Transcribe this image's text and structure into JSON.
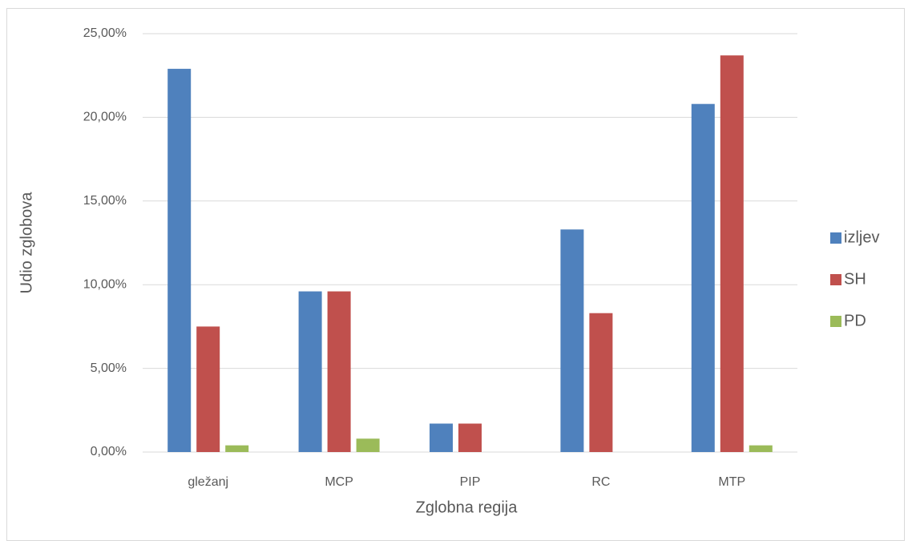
{
  "chart_data": {
    "type": "bar",
    "x_label": "Zglobna regija",
    "y_label": "Udio zglobova",
    "categories": [
      "gležanj",
      "MCP",
      "PIP",
      "RC",
      "MTP"
    ],
    "series": [
      {
        "name": "izljev",
        "color": "#4f81bd",
        "values": [
          22.9,
          9.6,
          1.7,
          13.3,
          20.8
        ]
      },
      {
        "name": "SH",
        "color": "#c0504d",
        "values": [
          7.5,
          9.6,
          1.7,
          8.3,
          23.7
        ]
      },
      {
        "name": "PD",
        "color": "#9bbb59",
        "values": [
          0.4,
          0.8,
          0,
          0,
          0.4
        ]
      }
    ],
    "ylim": [
      0,
      25
    ],
    "yticks": [
      {
        "value": 0,
        "label": "0,00%"
      },
      {
        "value": 5,
        "label": "5,00%"
      },
      {
        "value": 10,
        "label": "10,00%"
      },
      {
        "value": 15,
        "label": "15,00%"
      },
      {
        "value": 20,
        "label": "20,00%"
      },
      {
        "value": 25,
        "label": "25,00%"
      }
    ],
    "grid": true,
    "legend": "right"
  }
}
